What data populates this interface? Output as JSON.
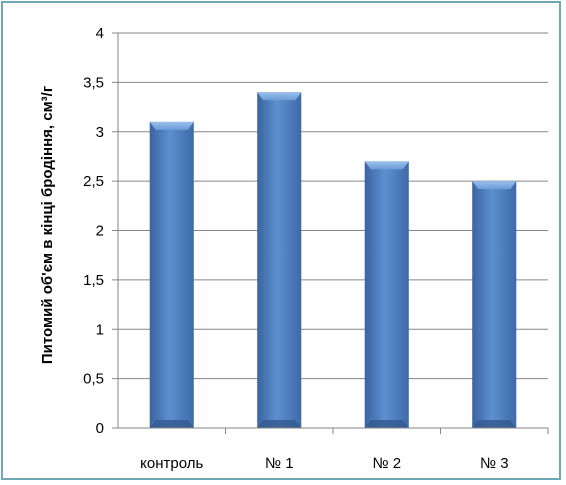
{
  "chart_data": {
    "type": "bar",
    "categories": [
      "контроль",
      "№ 1",
      "№ 2",
      "№ 3"
    ],
    "values": [
      3.1,
      3.4,
      2.7,
      2.5
    ],
    "title": "",
    "xlabel": "",
    "ylabel": "Питомий об'єм в кінці бродіння, см³/г",
    "ylim": [
      0,
      4
    ],
    "yticks": [
      "0",
      "0,5",
      "1",
      "1,5",
      "2",
      "2,5",
      "3",
      "3,5",
      "4"
    ],
    "grid": true,
    "legend": "none",
    "bar_color": "#4f81bd",
    "gridline_color": "#868686",
    "border_color": "#6fa8b3"
  }
}
